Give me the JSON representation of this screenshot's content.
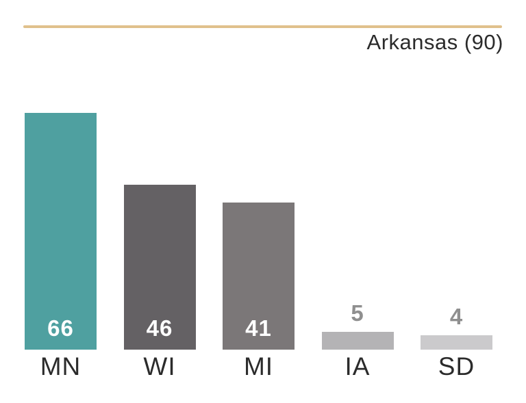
{
  "header": {
    "title": "Arkansas (90)",
    "rule_color": "#e0c18c"
  },
  "chart_data": {
    "type": "bar",
    "title": "Arkansas (90)",
    "categories": [
      "MN",
      "WI",
      "MI",
      "IA",
      "SD"
    ],
    "values": [
      66,
      46,
      41,
      5,
      4
    ],
    "bar_colors": [
      "#4fa0a0",
      "#646164",
      "#7b7778",
      "#b4b3b5",
      "#cbcacc"
    ],
    "value_label_positions": [
      "inside",
      "inside",
      "inside",
      "above",
      "above"
    ],
    "value_label_color_inside": "#ffffff",
    "value_label_color_above": "#8f8f8f",
    "xlabel": "",
    "ylabel": "",
    "ylim": [
      0,
      66
    ],
    "grid": false,
    "legend": false,
    "accent_color": "#4fa0a0"
  }
}
